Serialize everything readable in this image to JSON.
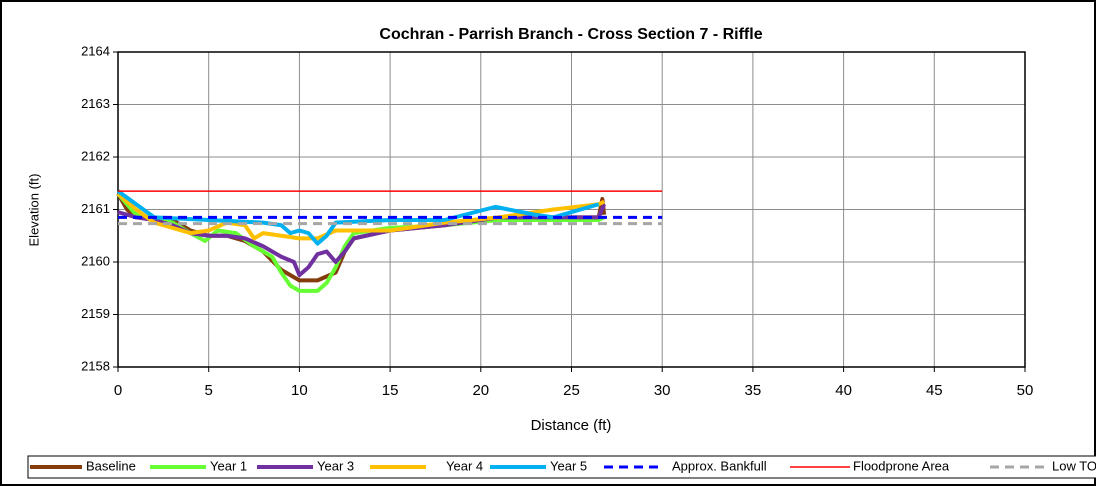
{
  "chart_data": {
    "type": "line",
    "title": "Cochran - Parrish Branch - Cross Section 7 - Riffle",
    "x_label": "Distance (ft)",
    "y_label": "Elevation (ft)",
    "xlim": [
      0,
      50
    ],
    "xticks": [
      0,
      5,
      10,
      15,
      20,
      25,
      30,
      35,
      40,
      45,
      50
    ],
    "ylim": [
      2158,
      2164
    ],
    "yticks": [
      2158,
      2159,
      2160,
      2161,
      2162,
      2163,
      2164
    ],
    "grid": true,
    "legend": "bottom",
    "series": [
      {
        "name": "Baseline",
        "color": "#843c0c",
        "dashed": false,
        "x": [
          0,
          0.5,
          1,
          2,
          3,
          4,
          5,
          6,
          7,
          8,
          9,
          10,
          11,
          12,
          12.5,
          13,
          15,
          18,
          21,
          24,
          26.5,
          26.7,
          26.8
        ],
        "values": [
          2161.3,
          2161.0,
          2160.85,
          2160.85,
          2160.8,
          2160.6,
          2160.5,
          2160.5,
          2160.4,
          2160.2,
          2159.85,
          2159.65,
          2159.65,
          2159.8,
          2160.2,
          2160.45,
          2160.6,
          2160.7,
          2160.85,
          2160.85,
          2160.85,
          2161.2,
          2160.9
        ]
      },
      {
        "name": "Year 1",
        "color": "#66ff33",
        "dashed": false,
        "x": [
          0,
          1,
          2,
          3,
          4,
          4.8,
          5.5,
          6.5,
          7.5,
          8.5,
          9,
          9.5,
          10,
          11,
          11.5,
          12,
          12.5,
          13,
          15,
          18,
          21,
          24,
          26.5,
          26.8
        ],
        "values": [
          2161.3,
          2160.9,
          2160.85,
          2160.75,
          2160.55,
          2160.4,
          2160.6,
          2160.55,
          2160.3,
          2160.1,
          2159.8,
          2159.55,
          2159.45,
          2159.45,
          2159.6,
          2159.9,
          2160.3,
          2160.55,
          2160.65,
          2160.7,
          2160.8,
          2160.8,
          2160.8,
          2160.85
        ]
      },
      {
        "name": "Year 3",
        "color": "#7030a0",
        "dashed": false,
        "x": [
          0,
          1,
          2,
          3,
          4,
          5,
          6,
          7,
          8,
          9,
          9.7,
          10,
          10.5,
          11,
          11.5,
          12,
          12.5,
          13,
          15,
          18,
          21,
          24,
          26.5,
          26.8
        ],
        "values": [
          2160.95,
          2160.85,
          2160.8,
          2160.7,
          2160.55,
          2160.5,
          2160.5,
          2160.45,
          2160.3,
          2160.1,
          2160.0,
          2159.75,
          2159.9,
          2160.15,
          2160.2,
          2160.0,
          2160.2,
          2160.45,
          2160.6,
          2160.7,
          2160.85,
          2160.85,
          2160.85,
          2161.1
        ]
      },
      {
        "name": "Year 4",
        "color": "#ffc000",
        "dashed": false,
        "x": [
          0,
          1,
          2,
          3,
          4,
          5,
          6,
          7,
          7.5,
          8,
          9,
          10,
          11,
          12,
          15,
          18,
          21,
          24,
          26.5,
          26.8
        ],
        "values": [
          2161.3,
          2161.0,
          2160.75,
          2160.65,
          2160.55,
          2160.6,
          2160.75,
          2160.7,
          2160.45,
          2160.55,
          2160.5,
          2160.45,
          2160.45,
          2160.6,
          2160.6,
          2160.75,
          2160.85,
          2161.0,
          2161.1,
          2161.15
        ]
      },
      {
        "name": "Year 5",
        "color": "#00b0f0",
        "dashed": false,
        "x": [
          0,
          1,
          2,
          5,
          8,
          9,
          9.5,
          10,
          10.5,
          11,
          11.5,
          12,
          15,
          18,
          20.8,
          23,
          24,
          26.5
        ],
        "values": [
          2161.35,
          2161.1,
          2160.85,
          2160.8,
          2160.75,
          2160.7,
          2160.55,
          2160.6,
          2160.55,
          2160.35,
          2160.5,
          2160.75,
          2160.8,
          2160.8,
          2161.05,
          2160.9,
          2160.85,
          2161.1
        ]
      },
      {
        "name": "Approx. Bankfull",
        "color": "#0000ff",
        "dashed": true,
        "x": [
          0,
          30
        ],
        "values": [
          2160.85,
          2160.85
        ]
      },
      {
        "name": "Floodprone Area",
        "color": "#ff0000",
        "dashed": false,
        "x": [
          0,
          30
        ],
        "values": [
          2161.35,
          2161.35
        ]
      },
      {
        "name": "Low TOB",
        "color": "#a6a6a6",
        "dashed": true,
        "x": [
          0,
          30
        ],
        "values": [
          2160.73,
          2160.73
        ]
      }
    ]
  }
}
